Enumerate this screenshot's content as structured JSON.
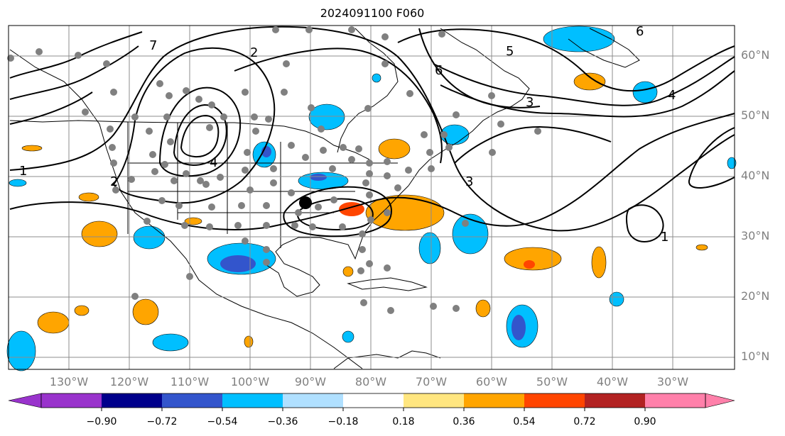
{
  "title": "2024091100 F060",
  "colors": {
    "land_line": "#000000",
    "contour": "#000000",
    "grid": "#8c8c8c",
    "point": "#808080",
    "marker": "#000000"
  },
  "latitude_labels": [
    "60°N",
    "50°N",
    "40°N",
    "30°N",
    "20°N",
    "10°N"
  ],
  "longitude_labels": [
    "130°W",
    "120°W",
    "110°W",
    "100°W",
    "90°W",
    "80°W",
    "70°W",
    "60°W",
    "50°W",
    "40°W",
    "30°W"
  ],
  "contour_labels": [
    "1",
    "2",
    "3",
    "4",
    "5",
    "6",
    "7"
  ],
  "colorbar": {
    "ticks": [
      "−0.90",
      "−0.72",
      "−0.54",
      "−0.36",
      "−0.18",
      "0.18",
      "0.36",
      "0.54",
      "0.72",
      "0.90"
    ],
    "colors": [
      "#9933cc",
      "#00008b",
      "#3355cc",
      "#00bfff",
      "#b0e0ff",
      "#ffffff",
      "#ffe680",
      "#ffa500",
      "#ff4500",
      "#b22222",
      "#ff80aa"
    ]
  }
}
